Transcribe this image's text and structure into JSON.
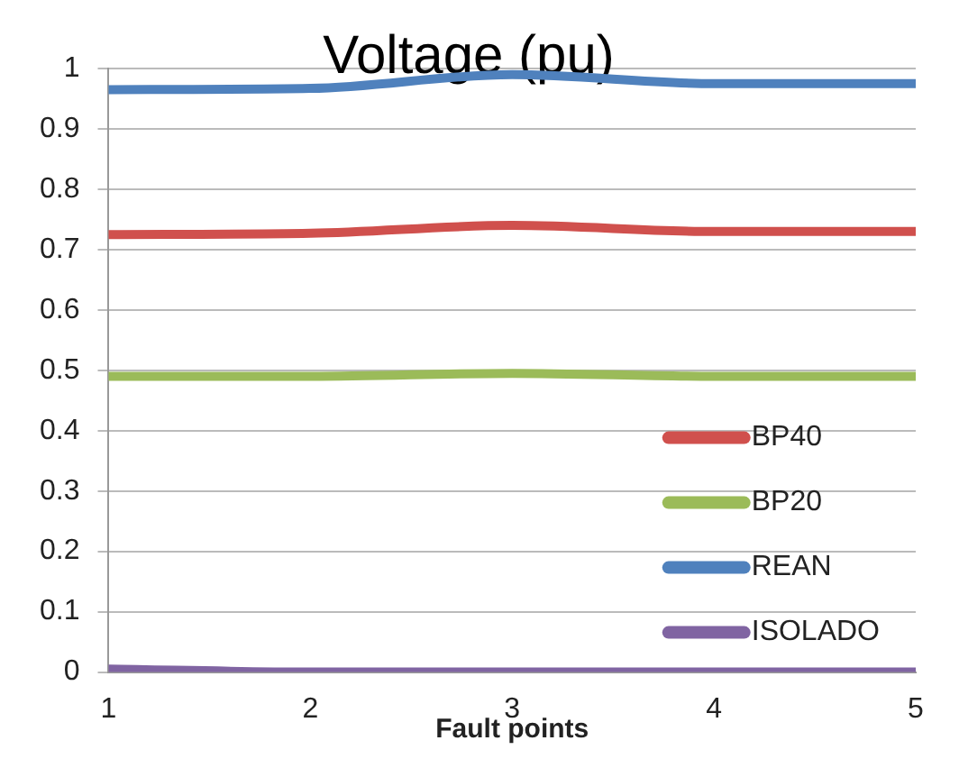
{
  "chart_data": {
    "type": "line",
    "title": "Voltage (pu)",
    "xlabel": "Fault points",
    "x": [
      1,
      2,
      3,
      4,
      5
    ],
    "series": [
      {
        "name": "BP40",
        "color": "#d0504d",
        "values": [
          0.725,
          0.727,
          0.74,
          0.73,
          0.73
        ]
      },
      {
        "name": "BP20",
        "color": "#9bbb59",
        "values": [
          0.49,
          0.49,
          0.495,
          0.49,
          0.49
        ]
      },
      {
        "name": "REAN",
        "color": "#4f81bd",
        "values": [
          0.965,
          0.967,
          0.99,
          0.975,
          0.975
        ]
      },
      {
        "name": "ISOLADO",
        "color": "#8064a2",
        "values": [
          0.005,
          0,
          0,
          0,
          0
        ]
      }
    ],
    "xlim": [
      1,
      5
    ],
    "xticks": [
      1,
      2,
      3,
      4,
      5
    ],
    "ylim": [
      0,
      1
    ],
    "yticks": [
      0,
      0.1,
      0.2,
      0.3,
      0.4,
      0.5,
      0.6,
      0.7,
      0.8,
      0.9,
      1
    ],
    "grid": "y",
    "legend": "bottom right",
    "marker": "none",
    "line_style": "solid"
  }
}
